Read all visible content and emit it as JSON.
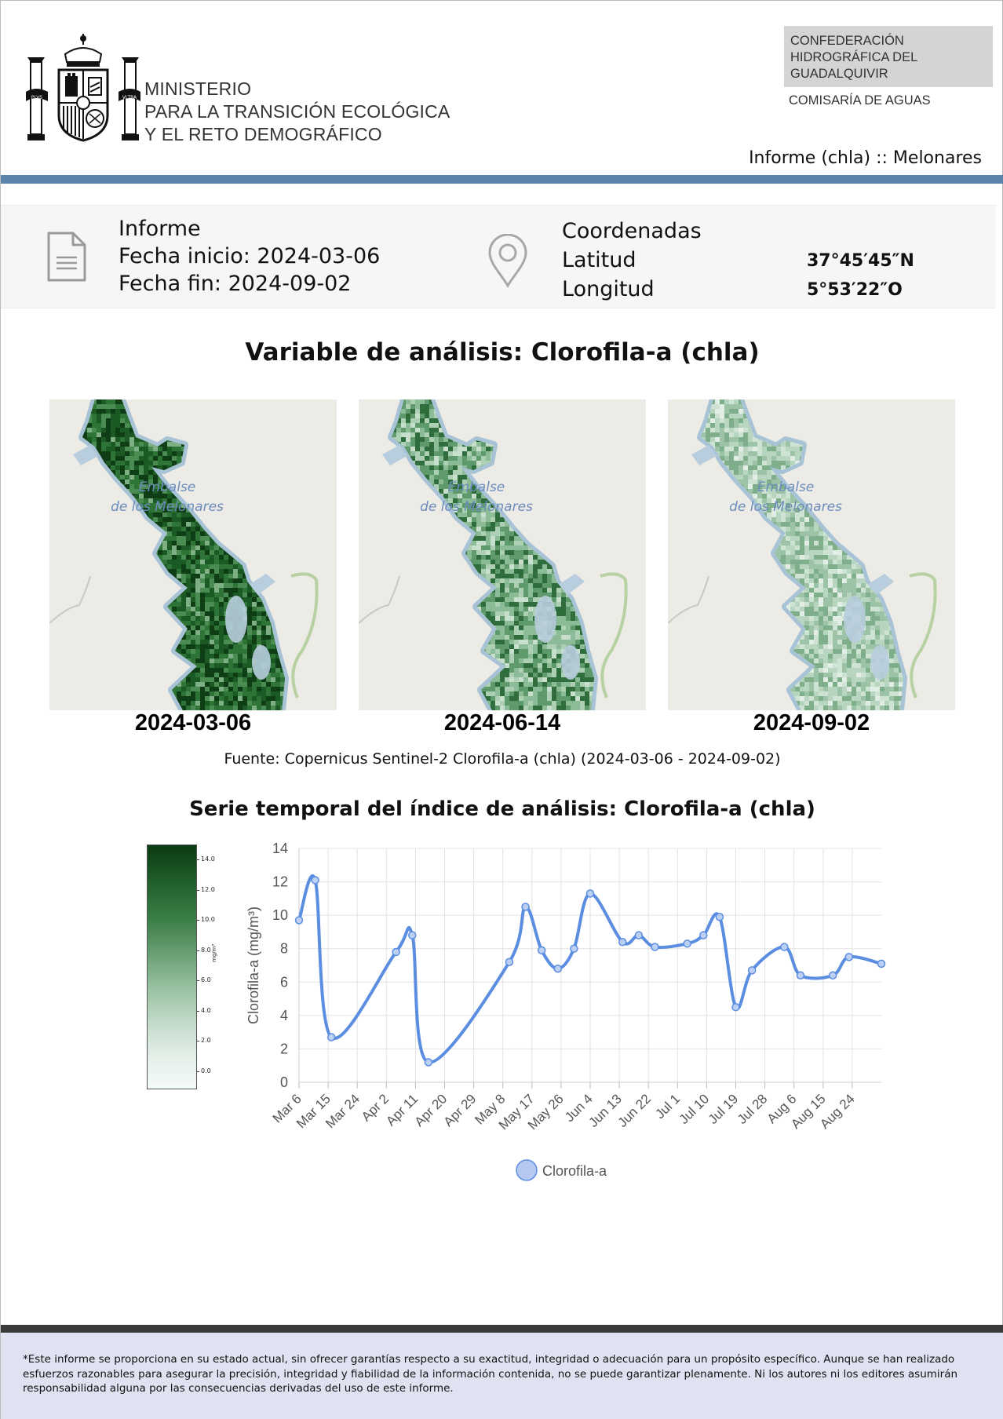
{
  "header": {
    "ministry_line1": "MINISTERIO",
    "ministry_line2": "PARA LA TRANSICIÓN ECOLÓGICA",
    "ministry_line3": "Y EL RETO DEMOGRÁFICO",
    "confederation": "CONFEDERACIÓN HIDROGRÁFICA DEL GUADALQUIVIR",
    "comisaria": "COMISARÍA DE AGUAS",
    "report_name": "Informe (chla) :: Melonares",
    "seal_text_left": "PLVS",
    "seal_text_right": "VLTRA"
  },
  "info": {
    "report_label": "Informe",
    "start_label": "Fecha inicio: ",
    "start_date": "2024-03-06",
    "end_label": "Fecha fin: ",
    "end_date": "2024-09-02",
    "coords_label": "Coordenadas",
    "lat_label": "Latitud",
    "lat_value": "37°45′45″N",
    "lon_label": "Longitud",
    "lon_value": "5°53′22″O"
  },
  "maps": {
    "title": "Variable de análisis: Clorofila-a (chla)",
    "reservoir_label_line1": "Embalse",
    "reservoir_label_line2": "de los Melonares",
    "dates": [
      "2024-03-06",
      "2024-06-14",
      "2024-09-02"
    ],
    "intensity": [
      "high",
      "medium",
      "low"
    ],
    "source": "Fuente: Copernicus Sentinel-2 Clorofila-a (chla) (2024-03-06 - 2024-09-02)"
  },
  "series": {
    "title": "Serie temporal del índice de análisis: Clorofila-a (chla)"
  },
  "colorbar": {
    "ticks": [
      "14.0",
      "12.0",
      "10.0",
      "8.0",
      "6.0",
      "4.0",
      "2.0",
      "0.0"
    ],
    "unit": "mg/m³",
    "top_color": "#0b3a12",
    "bottom_color": "#f5fafb"
  },
  "chart_data": {
    "type": "line",
    "title": "",
    "xlabel": "",
    "ylabel": "Clorofila-a (mg/m³)",
    "ylim": [
      0,
      14
    ],
    "yticks": [
      0,
      2,
      4,
      6,
      8,
      10,
      12,
      14
    ],
    "xtick_labels": [
      "Mar 6",
      "Mar 15",
      "Mar 24",
      "Apr 2",
      "Apr 11",
      "Apr 20",
      "Apr 29",
      "May 8",
      "May 17",
      "May 26",
      "Jun 4",
      "Jun 13",
      "Jun 22",
      "Jul 1",
      "Jul 10",
      "Jul 19",
      "Jul 28",
      "Aug 6",
      "Aug 15",
      "Aug 24"
    ],
    "x": [
      "2024-03-06",
      "2024-03-11",
      "2024-03-16",
      "2024-04-05",
      "2024-04-10",
      "2024-04-15",
      "2024-05-10",
      "2024-05-15",
      "2024-05-20",
      "2024-05-25",
      "2024-05-30",
      "2024-06-04",
      "2024-06-14",
      "2024-06-19",
      "2024-06-24",
      "2024-07-04",
      "2024-07-09",
      "2024-07-14",
      "2024-07-19",
      "2024-07-24",
      "2024-08-03",
      "2024-08-08",
      "2024-08-18",
      "2024-08-23",
      "2024-09-02"
    ],
    "series": [
      {
        "name": "Clorofila-a",
        "color": "#5b8de0",
        "values": [
          9.7,
          12.1,
          2.7,
          7.8,
          8.8,
          1.2,
          7.2,
          10.5,
          7.9,
          6.8,
          8.0,
          11.3,
          8.4,
          8.8,
          8.1,
          8.3,
          8.8,
          9.9,
          4.5,
          6.7,
          8.1,
          6.4,
          6.4,
          7.5,
          7.1
        ]
      }
    ],
    "grid": true,
    "legend_position": "bottom"
  },
  "footer": {
    "disclaimer": "*Este informe se proporciona en su estado actual, sin ofrecer garantías respecto a su exactitud, integridad o adecuación para un propósito específico. Aunque se han realizado esfuerzos razonables para asegurar la precisión, integridad y fiabilidad de la información contenida, no se puede garantizar plenamente. Ni los autores ni los editores asumirán responsabilidad alguna por las consecuencias derivadas del uso de este informe."
  }
}
